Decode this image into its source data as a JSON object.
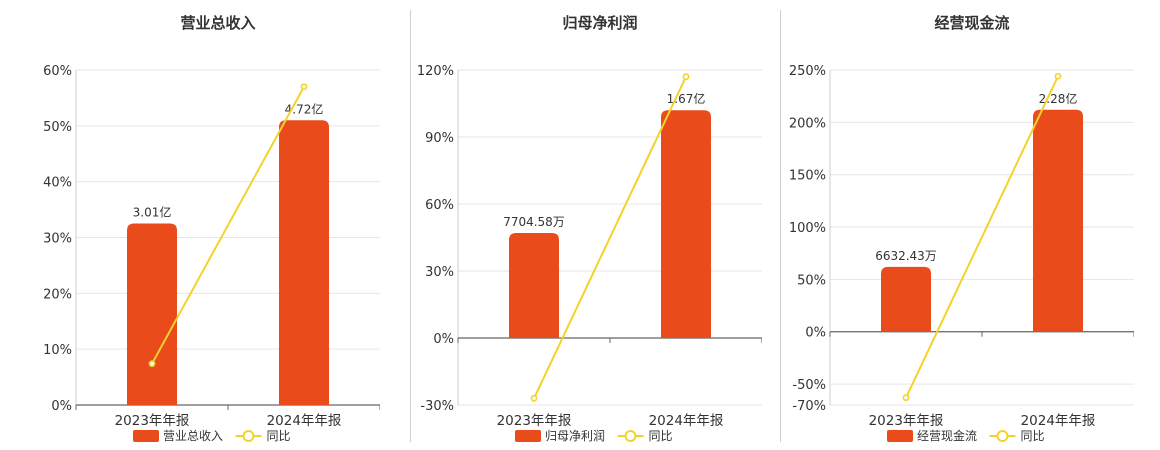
{
  "colors": {
    "bar": "#e94b1b",
    "line": "#f3d32a",
    "grid": "#e6e6e6",
    "axis": "#666666"
  },
  "chart_data": [
    {
      "type": "bar",
      "title": "营业总收入",
      "categories": [
        "2023年年报",
        "2024年年报"
      ],
      "ylim": [
        0,
        60
      ],
      "yticks": [
        0,
        10,
        20,
        30,
        40,
        50,
        60
      ],
      "ytick_labels": [
        "0%",
        "10%",
        "20%",
        "30%",
        "40%",
        "50%",
        "60%"
      ],
      "series": [
        {
          "name": "营业总收入",
          "kind": "bar",
          "values": [
            32.5,
            51
          ],
          "labels": [
            "3.01亿",
            "4.72亿"
          ]
        },
        {
          "name": "同比",
          "kind": "line",
          "values": [
            7.4,
            57
          ]
        }
      ],
      "legend": [
        "营业总收入",
        "同比"
      ],
      "legend_position": "bottom",
      "grid": true
    },
    {
      "type": "bar",
      "title": "归母净利润",
      "categories": [
        "2023年年报",
        "2024年年报"
      ],
      "ylim": [
        -30,
        120
      ],
      "yticks": [
        -30,
        0,
        30,
        60,
        90,
        120
      ],
      "ytick_labels": [
        "-30%",
        "0%",
        "30%",
        "60%",
        "90%",
        "120%"
      ],
      "series": [
        {
          "name": "归母净利润",
          "kind": "bar",
          "values": [
            47,
            102
          ],
          "labels": [
            "7704.58万",
            "1.67亿"
          ]
        },
        {
          "name": "同比",
          "kind": "line",
          "values": [
            -27,
            117
          ]
        }
      ],
      "legend": [
        "归母净利润",
        "同比"
      ],
      "legend_position": "bottom",
      "grid": true
    },
    {
      "type": "bar",
      "title": "经营现金流",
      "categories": [
        "2023年年报",
        "2024年年报"
      ],
      "ylim": [
        -70,
        250
      ],
      "yticks": [
        -70,
        -50,
        0,
        50,
        100,
        150,
        200,
        250
      ],
      "ytick_labels": [
        "-70%",
        "-50%",
        "0%",
        "50%",
        "100%",
        "150%",
        "200%",
        "250%"
      ],
      "series": [
        {
          "name": "经营现金流",
          "kind": "bar",
          "values": [
            62,
            212
          ],
          "labels": [
            "6632.43万",
            "2.28亿"
          ]
        },
        {
          "name": "同比",
          "kind": "line",
          "values": [
            -63,
            244
          ]
        }
      ],
      "legend": [
        "经营现金流",
        "同比"
      ],
      "legend_position": "bottom",
      "grid": true
    }
  ]
}
